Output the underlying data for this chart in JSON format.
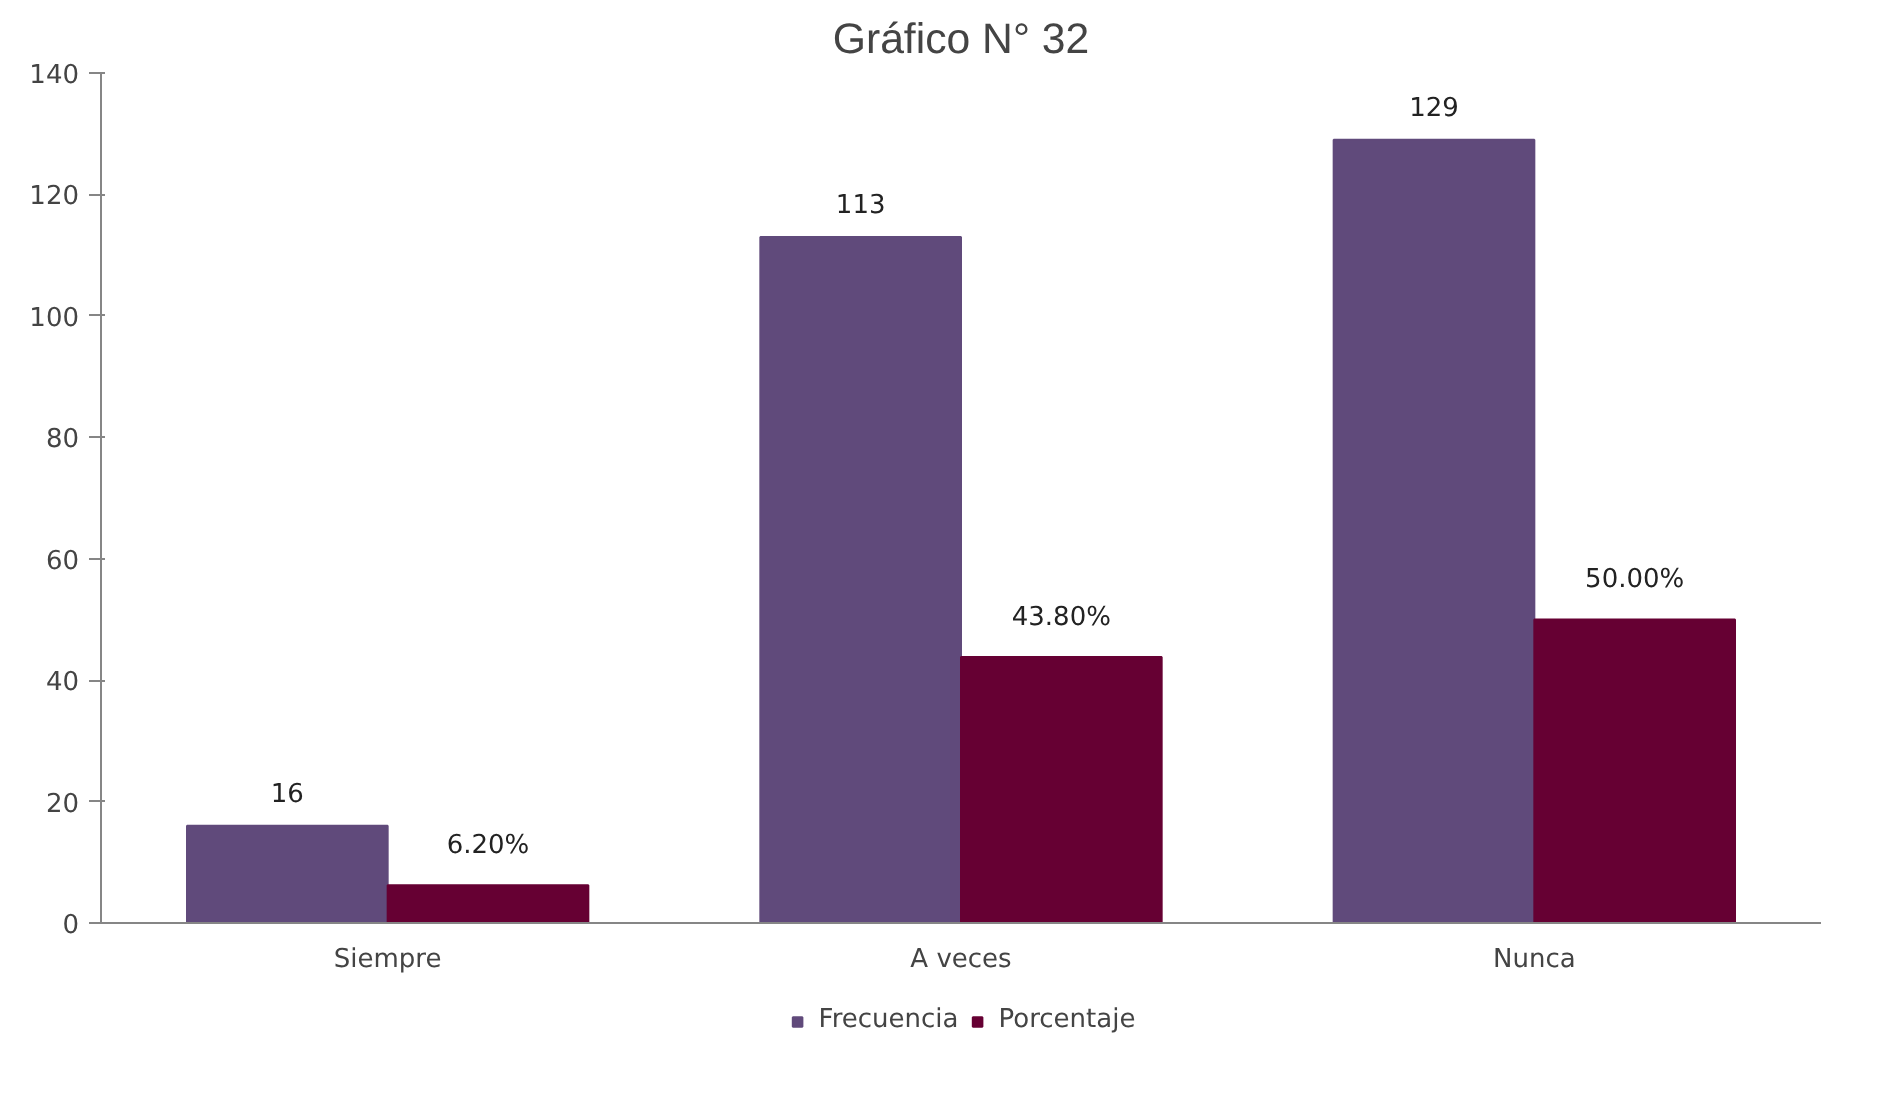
{
  "chart_data": {
    "type": "bar",
    "title": "Gráfico N° 32",
    "categories": [
      "Siempre",
      "A veces",
      "Nunca"
    ],
    "series": [
      {
        "name": "Frecuencia",
        "color": "#604a7b",
        "values": [
          16,
          113,
          129
        ],
        "value_labels": [
          "16",
          "113",
          "129"
        ]
      },
      {
        "name": "Porcentaje",
        "color": "#660033",
        "values": [
          6.2,
          43.8,
          50.0
        ],
        "value_labels": [
          "6.20%",
          "43.80%",
          "50.00%"
        ]
      }
    ],
    "ylim": [
      0,
      140
    ],
    "yticks": [
      0,
      20,
      40,
      60,
      80,
      100,
      120,
      140
    ],
    "grid": false,
    "legend": "bottom"
  }
}
